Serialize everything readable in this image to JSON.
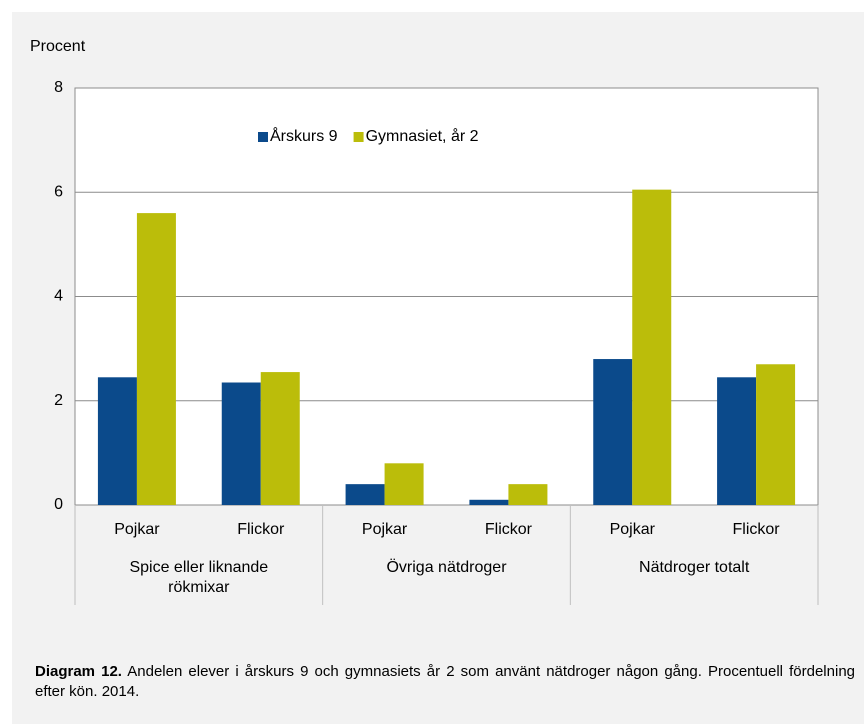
{
  "chart_data": {
    "type": "bar",
    "y_label": "Procent",
    "categories": [
      "Pojkar",
      "Flickor",
      "Pojkar",
      "Flickor",
      "Pojkar",
      "Flickor"
    ],
    "groups": [
      "Spice eller liknande rökmixar",
      "Övriga nätdroger",
      "Nätdroger totalt"
    ],
    "series": [
      {
        "name": "Årskurs 9",
        "color": "#0b4a8b",
        "values": [
          2.45,
          2.35,
          0.4,
          0.1,
          2.8,
          2.45
        ]
      },
      {
        "name": "Gymnasiet, år 2",
        "color": "#bbbd0a",
        "values": [
          5.6,
          2.55,
          0.8,
          0.4,
          6.05,
          2.7
        ]
      }
    ],
    "ylim": [
      0,
      8
    ],
    "yticks": [
      0,
      2,
      4,
      6,
      8
    ],
    "grid": true,
    "legend": "top",
    "caption_label": "Diagram 12.",
    "caption_text": "Andelen elever i årskurs 9 och gymnasiets år 2 som använt nätdroger någon gång. Procentuell fördelning efter kön. 2014."
  }
}
